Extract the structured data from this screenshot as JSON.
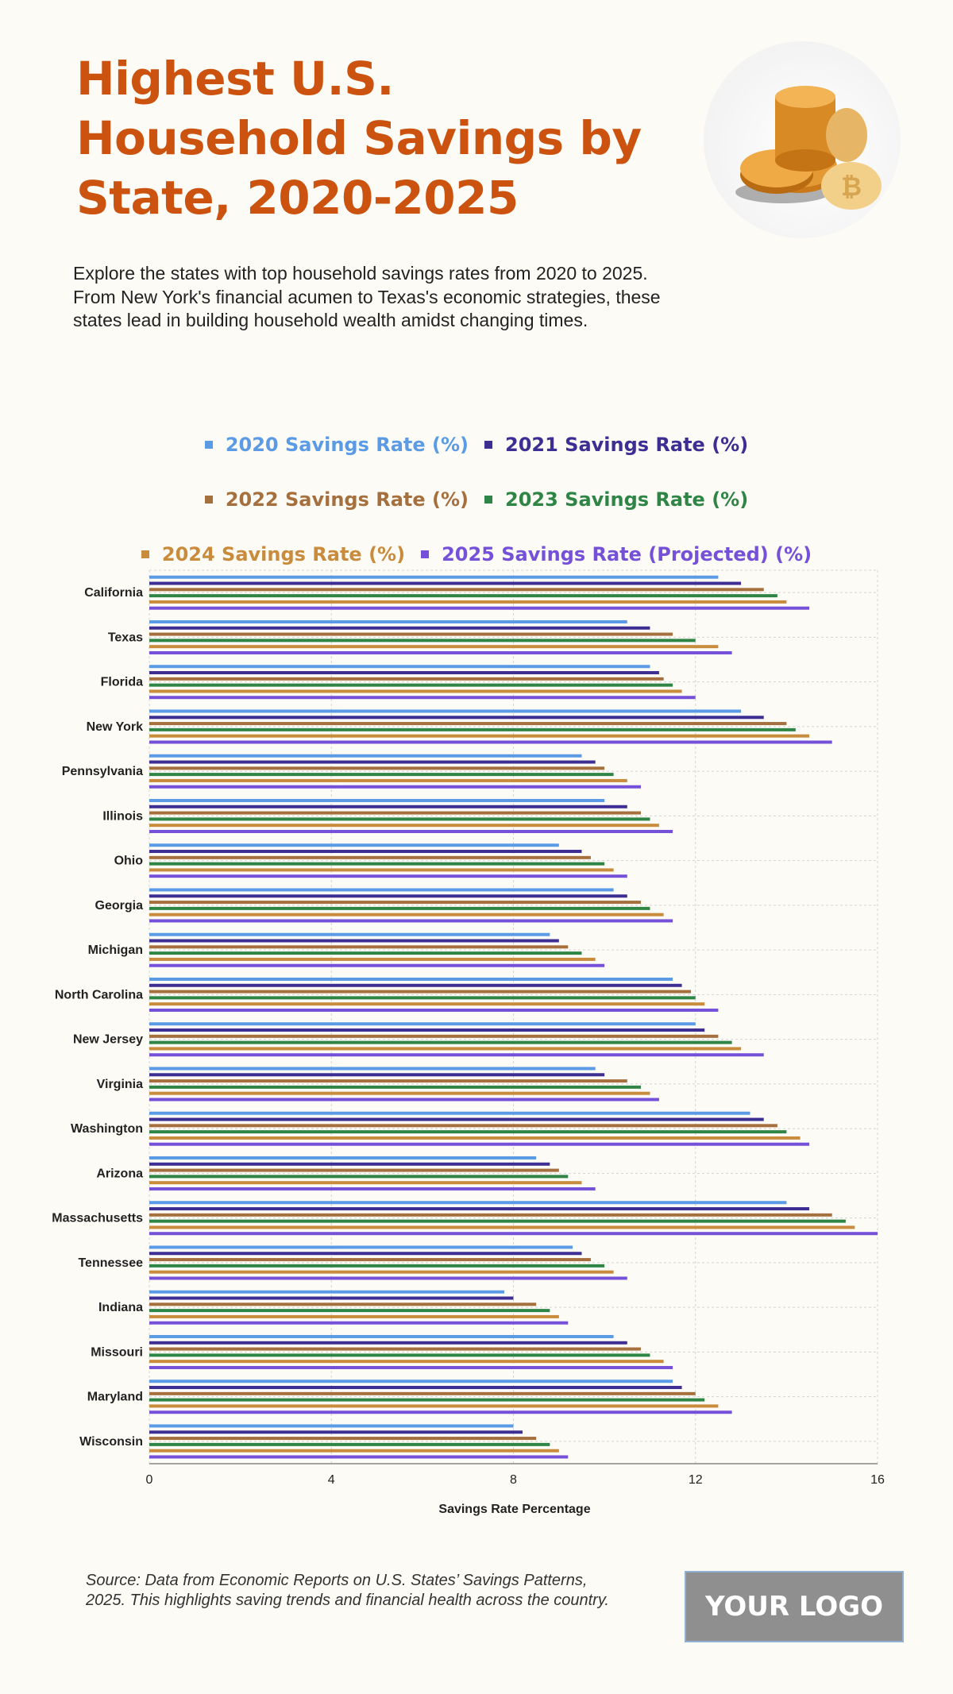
{
  "header": {
    "title": "Highest U.S. Household Savings by State, 2020-2025",
    "subtitle": "Explore the states with top household savings rates from 2020 to 2025. From New York's financial acumen to Texas's economic strategies, these states lead in building household wealth amidst changing times.",
    "image": "gold-coins-image"
  },
  "footer": {
    "source": "Source: Data from Economic Reports on U.S. States’ Savings Patterns, 2025. This highlights saving trends and financial health across the country.",
    "logo": "YOUR LOGO"
  },
  "colors": {
    "background": "#fdfbf5",
    "title": "#cc530f"
  },
  "chart_data": {
    "type": "bar",
    "orientation": "horizontal",
    "title": "",
    "xlabel": "Savings Rate Percentage",
    "ylabel": "",
    "xlim": [
      0,
      16
    ],
    "xticks": [
      0,
      4,
      8,
      12,
      16
    ],
    "grid": true,
    "legend_position": "top",
    "categories": [
      "California",
      "Texas",
      "Florida",
      "New York",
      "Pennsylvania",
      "Illinois",
      "Ohio",
      "Georgia",
      "Michigan",
      "North Carolina",
      "New Jersey",
      "Virginia",
      "Washington",
      "Arizona",
      "Massachusetts",
      "Tennessee",
      "Indiana",
      "Missouri",
      "Maryland",
      "Wisconsin"
    ],
    "series": [
      {
        "name": "2020 Savings Rate (%)",
        "color": "#5b9be6",
        "values": [
          12.5,
          10.5,
          11.0,
          13.0,
          9.5,
          10.0,
          9.0,
          10.2,
          8.8,
          11.5,
          12.0,
          9.8,
          13.2,
          8.5,
          14.0,
          9.3,
          7.8,
          10.2,
          11.5,
          8.0
        ]
      },
      {
        "name": "2021 Savings Rate (%)",
        "color": "#3d2e94",
        "values": [
          13.0,
          11.0,
          11.2,
          13.5,
          9.8,
          10.5,
          9.5,
          10.5,
          9.0,
          11.7,
          12.2,
          10.0,
          13.5,
          8.8,
          14.5,
          9.5,
          8.0,
          10.5,
          11.7,
          8.2
        ]
      },
      {
        "name": "2022 Savings Rate (%)",
        "color": "#a5703d",
        "values": [
          13.5,
          11.5,
          11.3,
          14.0,
          10.0,
          10.8,
          9.7,
          10.8,
          9.2,
          11.9,
          12.5,
          10.5,
          13.8,
          9.0,
          15.0,
          9.7,
          8.5,
          10.8,
          12.0,
          8.5
        ]
      },
      {
        "name": "2023 Savings Rate (%)",
        "color": "#2f8545",
        "values": [
          13.8,
          12.0,
          11.5,
          14.2,
          10.2,
          11.0,
          10.0,
          11.0,
          9.5,
          12.0,
          12.8,
          10.8,
          14.0,
          9.2,
          15.3,
          10.0,
          8.8,
          11.0,
          12.2,
          8.8
        ]
      },
      {
        "name": "2024 Savings Rate (%)",
        "color": "#c98b3c",
        "values": [
          14.0,
          12.5,
          11.7,
          14.5,
          10.5,
          11.2,
          10.2,
          11.3,
          9.8,
          12.2,
          13.0,
          11.0,
          14.3,
          9.5,
          15.5,
          10.2,
          9.0,
          11.3,
          12.5,
          9.0
        ]
      },
      {
        "name": "2025 Savings Rate (Projected) (%)",
        "color": "#7550d8",
        "values": [
          14.5,
          12.8,
          12.0,
          15.0,
          10.8,
          11.5,
          10.5,
          11.5,
          10.0,
          12.5,
          13.5,
          11.2,
          14.5,
          9.8,
          16.0,
          10.5,
          9.2,
          11.5,
          12.8,
          9.2
        ]
      }
    ]
  }
}
